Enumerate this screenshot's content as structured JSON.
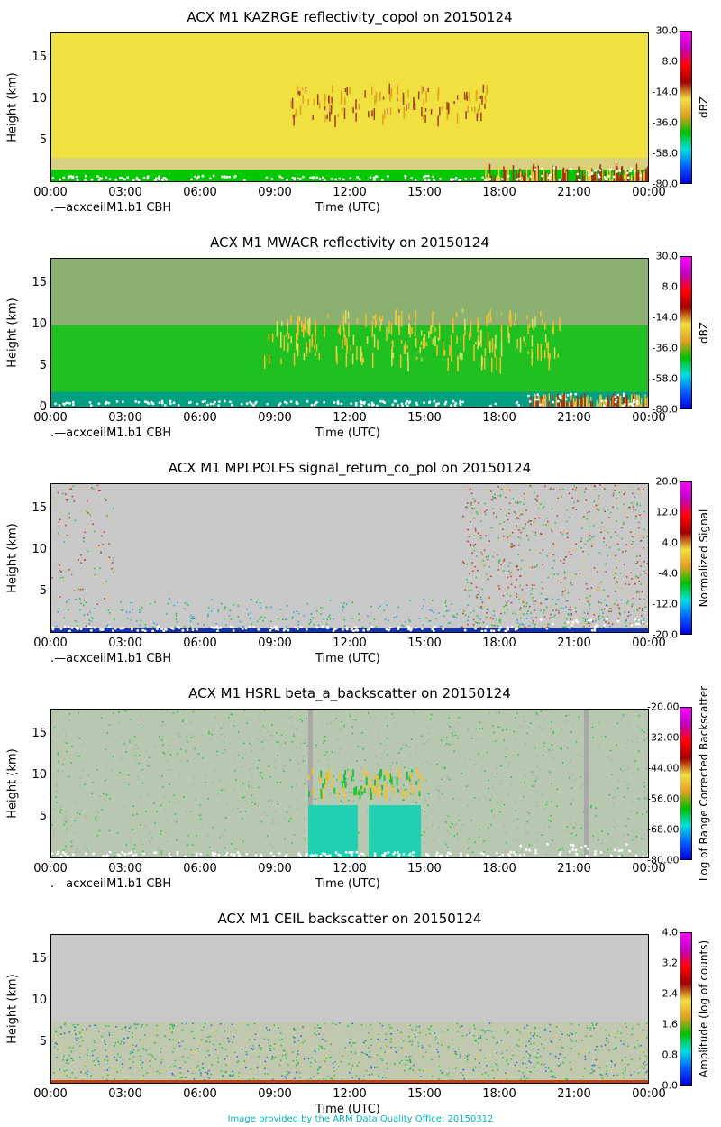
{
  "footer": "Image provided by the ARM Data Quality Office: 20150312",
  "chart_data": [
    {
      "type": "heatmap",
      "title": "ACX M1 KAZRGE reflectivity_copol on 20150124",
      "xlabel": "Time (UTC)",
      "ylabel": "Height (km)",
      "x_ticks": [
        "00:00",
        "03:00",
        "06:00",
        "09:00",
        "12:00",
        "15:00",
        "18:00",
        "21:00",
        "00:00"
      ],
      "y_ticks": [
        5,
        10,
        15
      ],
      "ylim": [
        0,
        18
      ],
      "annotation": ".—acxceilM1.b1 CBH",
      "colorbar": {
        "label": "dBZ",
        "ticks": [
          "30.0",
          "8.0",
          "-14.0",
          "-36.0",
          "-58.0",
          "-80.0"
        ],
        "range": [
          -80,
          30
        ]
      },
      "colors": {
        "background": "#f0e040",
        "low": "#00c800",
        "cloud": "#a03010"
      }
    },
    {
      "type": "heatmap",
      "title": "ACX M1 MWACR reflectivity on 20150124",
      "xlabel": "Time (UTC)",
      "ylabel": "Height (km)",
      "x_ticks": [
        "00:00",
        "03:00",
        "06:00",
        "09:00",
        "12:00",
        "15:00",
        "18:00",
        "21:00",
        "00:00"
      ],
      "y_ticks": [
        0,
        5,
        10,
        15
      ],
      "ylim": [
        0,
        18
      ],
      "annotation": ".—acxceilM1.b1 CBH",
      "colorbar": {
        "label": "dBZ",
        "ticks": [
          "30.0",
          "8.0",
          "-14.0",
          "-36.0",
          "-58.0",
          "-80.0"
        ],
        "range": [
          -80,
          30
        ]
      },
      "colors": {
        "background": "#8cb070",
        "low": "#10d010",
        "cloud": "#f0c030"
      }
    },
    {
      "type": "heatmap",
      "title": "ACX M1 MPLPOLFS signal_return_co_pol on 20150124",
      "xlabel": "Time (UTC)",
      "ylabel": "Height (km)",
      "x_ticks": [
        "00:00",
        "03:00",
        "06:00",
        "09:00",
        "12:00",
        "15:00",
        "18:00",
        "21:00",
        "00:00"
      ],
      "y_ticks": [
        5,
        10,
        15
      ],
      "ylim": [
        0,
        18
      ],
      "annotation": ".—acxceilM1.b1 CBH",
      "colorbar": {
        "label": "Normalized Signal",
        "ticks": [
          "20.0",
          "12.0",
          "4.0",
          "-4.0",
          "-12.0",
          "-20.0"
        ],
        "range": [
          -20,
          20
        ]
      },
      "colors": {
        "background": "#c8c8c8",
        "noise": "#c83020",
        "near": "#1030c0"
      }
    },
    {
      "type": "heatmap",
      "title": "ACX M1 HSRL beta_a_backscatter on 20150124",
      "xlabel": "Time (UTC)",
      "ylabel": "Height (km)",
      "x_ticks": [
        "00:00",
        "03:00",
        "06:00",
        "09:00",
        "12:00",
        "15:00",
        "18:00",
        "21:00",
        "00:00"
      ],
      "y_ticks": [
        5,
        10,
        15
      ],
      "ylim": [
        0,
        18
      ],
      "annotation": ".—acxceilM1.b1 CBH",
      "colorbar": {
        "label": "Log of Range Corrected Backscatter",
        "ticks": [
          "-20.00",
          "-32.00",
          "-44.00",
          "-56.00",
          "-68.00",
          "-80.00"
        ],
        "range": [
          -80,
          -20
        ]
      },
      "colors": {
        "background": "#b8c8b0",
        "cloud": "#20d0b0"
      }
    },
    {
      "type": "heatmap",
      "title": "ACX M1 CEIL backscatter on 20150124",
      "xlabel": "Time (UTC)",
      "ylabel": "Height (km)",
      "x_ticks": [
        "00:00",
        "03:00",
        "06:00",
        "09:00",
        "12:00",
        "15:00",
        "18:00",
        "21:00",
        "00:00"
      ],
      "y_ticks": [
        5,
        10,
        15
      ],
      "ylim": [
        0,
        18
      ],
      "annotation": "",
      "colorbar": {
        "label": "Amplitude (log of counts)",
        "ticks": [
          "4.0",
          "3.2",
          "2.4",
          "1.6",
          "0.8",
          "0.0"
        ],
        "range": [
          0,
          4
        ]
      },
      "colors": {
        "background": "#c8c8c8",
        "low": "#c8c8c8",
        "top": "#e8d050"
      }
    }
  ]
}
